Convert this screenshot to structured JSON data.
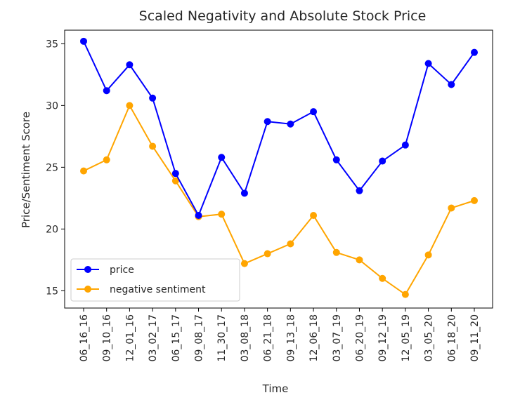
{
  "chart_data": {
    "type": "line",
    "title": "Scaled Negativity and Absolute Stock Price",
    "xlabel": "Time",
    "ylabel": "Price/Sentiment Score",
    "categories": [
      "06_16_16",
      "09_10_16",
      "12_01_16",
      "03_02_17",
      "06_15_17",
      "09_08_17",
      "11_30_17",
      "03_08_18",
      "06_21_18",
      "09_13_18",
      "12_06_18",
      "03_07_19",
      "06_20_19",
      "09_12_19",
      "12_05_19",
      "03_05_20",
      "06_18_20",
      "09_11_20"
    ],
    "yticks": [
      15,
      20,
      25,
      30,
      35
    ],
    "ylim": [
      13.6,
      36.1
    ],
    "grid": false,
    "legend_position": "lower-left",
    "series": [
      {
        "name": "price",
        "color": "#0000ff",
        "values": [
          35.2,
          31.2,
          33.3,
          30.6,
          24.5,
          21.1,
          25.8,
          22.9,
          28.7,
          28.5,
          29.5,
          25.6,
          23.1,
          25.5,
          26.8,
          33.4,
          31.7,
          34.3
        ]
      },
      {
        "name": "negative sentiment",
        "color": "#ffa500",
        "values": [
          24.7,
          25.6,
          30.0,
          26.7,
          23.9,
          21.0,
          21.2,
          17.2,
          18.0,
          18.8,
          21.1,
          18.1,
          17.5,
          16.0,
          14.7,
          17.9,
          21.7,
          22.3
        ]
      }
    ]
  }
}
